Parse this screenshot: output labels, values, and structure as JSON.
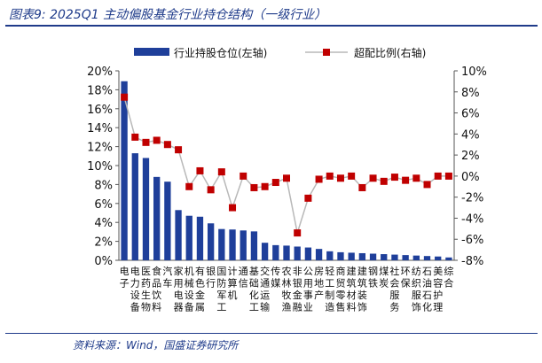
{
  "figure": {
    "title": "图表9:  2025Q1 主动偏股基金行业持仓结构（一级行业）",
    "source": "资料来源：Wind，国盛证券研究所"
  },
  "colors": {
    "bar": "#1f3f9a",
    "marker": "#c00000",
    "line": "#b8b8b8",
    "axis": "#555555"
  },
  "chart_data": {
    "type": "bar",
    "categories": [
      "电子",
      "电力设备",
      "医药生物",
      "食品饮料",
      "汽车",
      "家用电器",
      "机械设备",
      "有色金属",
      "银行",
      "国防军工",
      "计算机",
      "通信",
      "基础化工",
      "交通运输",
      "传媒",
      "农林牧渔",
      "非银金融",
      "公用事业",
      "房地产",
      "轻工制造",
      "商贸零售",
      "建筑材料",
      "建筑装饰",
      "钢铁",
      "煤炭",
      "社会服务",
      "环保",
      "纺织服饰",
      "石油石化",
      "美容护理",
      "综合"
    ],
    "series": [
      {
        "name": "行业持股仓位(左轴)",
        "axis": "left",
        "values": [
          18.9,
          11.3,
          10.8,
          8.8,
          8.3,
          5.3,
          4.7,
          4.6,
          3.9,
          3.3,
          3.25,
          3.15,
          3.05,
          1.85,
          1.6,
          1.55,
          1.45,
          1.35,
          1.2,
          0.95,
          0.85,
          0.8,
          0.75,
          0.7,
          0.65,
          0.6,
          0.55,
          0.5,
          0.45,
          0.4,
          0.3
        ]
      },
      {
        "name": "超配比例(右轴)",
        "axis": "right",
        "values": [
          7.5,
          3.7,
          3.2,
          3.4,
          3.0,
          2.5,
          -1.0,
          0.5,
          -1.3,
          0.4,
          -3.0,
          0.0,
          -1.1,
          -1.0,
          -0.6,
          -0.2,
          -5.4,
          -2.1,
          -0.3,
          0.0,
          -0.2,
          0.0,
          -1.1,
          -0.2,
          -0.5,
          -0.1,
          -0.4,
          -0.2,
          -0.8,
          0.0,
          0.0
        ]
      }
    ],
    "y_left": {
      "min": 0,
      "max": 20,
      "step": 2,
      "format": "percent"
    },
    "y_right": {
      "min": -8,
      "max": 10,
      "step": 2,
      "format": "percent"
    },
    "grid": false,
    "legend_position": "top"
  }
}
